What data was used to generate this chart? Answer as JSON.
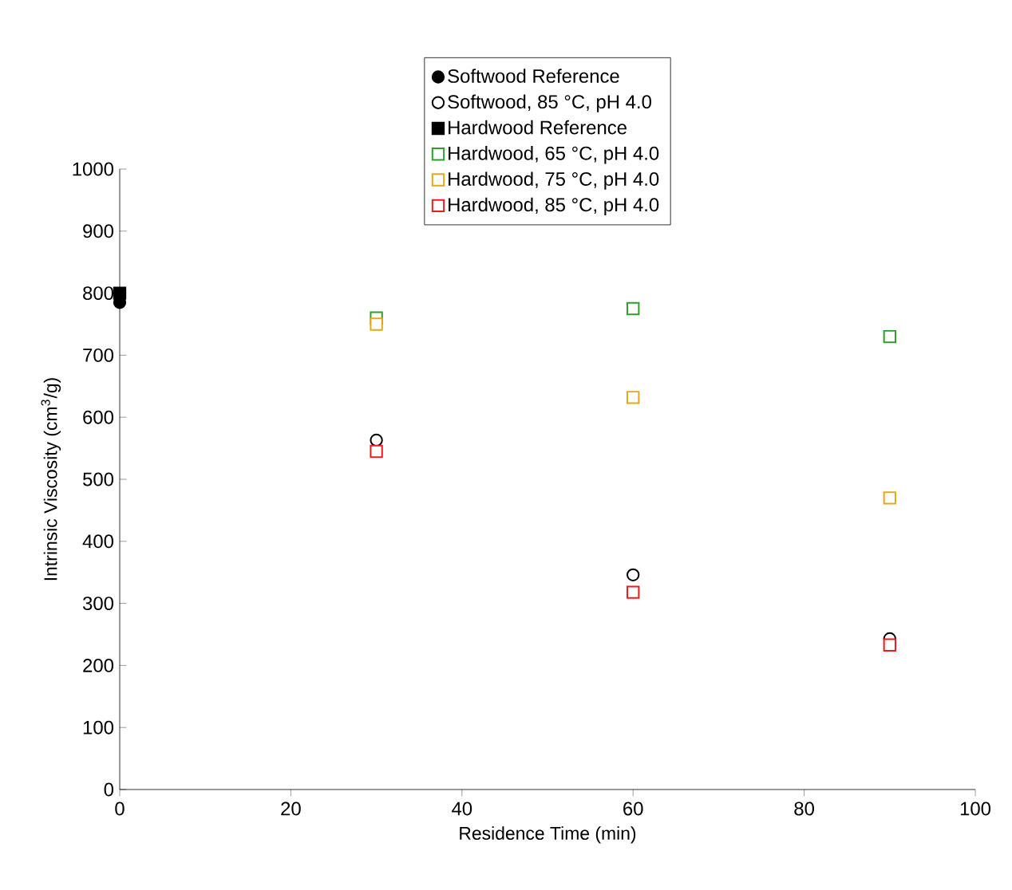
{
  "chart_data": {
    "type": "scatter",
    "xlabel": "Residence Time (min)",
    "ylabel": "Intrinsic Viscosity (cm$^{3}$/g)",
    "xlim": [
      0,
      100
    ],
    "xticks": [
      0,
      20,
      40,
      60,
      80,
      100
    ],
    "ylim": [
      0,
      1000
    ],
    "yticks": [
      0,
      100,
      200,
      300,
      400,
      500,
      600,
      700,
      800,
      900,
      1000
    ],
    "grid": false,
    "legend": "top",
    "series": [
      {
        "name": "Softwood Reference",
        "color": "#000000",
        "marker": "circle",
        "x": [
          0
        ],
        "values": [
          785
        ]
      },
      {
        "name": "Softwood, 85 °C, pH 4.0",
        "color": "#000000",
        "marker": "circle",
        "x": [
          30,
          60,
          90
        ],
        "values": [
          563,
          346,
          243
        ]
      },
      {
        "name": "Hardwood Reference",
        "color": "#000000",
        "marker": "square",
        "x": [
          0
        ],
        "values": [
          800
        ]
      },
      {
        "name": "Hardwood, 65 °C, pH 4.0",
        "color": "#2ca02c",
        "marker": "square",
        "x": [
          30,
          60,
          90
        ],
        "values": [
          760,
          775,
          730
        ]
      },
      {
        "name": "Hardwood, 75 °C, pH 4.0",
        "color": "#e6a817",
        "marker": "square",
        "x": [
          30,
          60,
          90
        ],
        "values": [
          750,
          632,
          470
        ]
      },
      {
        "name": "Hardwood, 85 °C, pH 4.0",
        "color": "#ee1c1c",
        "marker": "square",
        "x": [
          30,
          60,
          90
        ],
        "values": [
          545,
          318,
          233
        ]
      }
    ]
  }
}
